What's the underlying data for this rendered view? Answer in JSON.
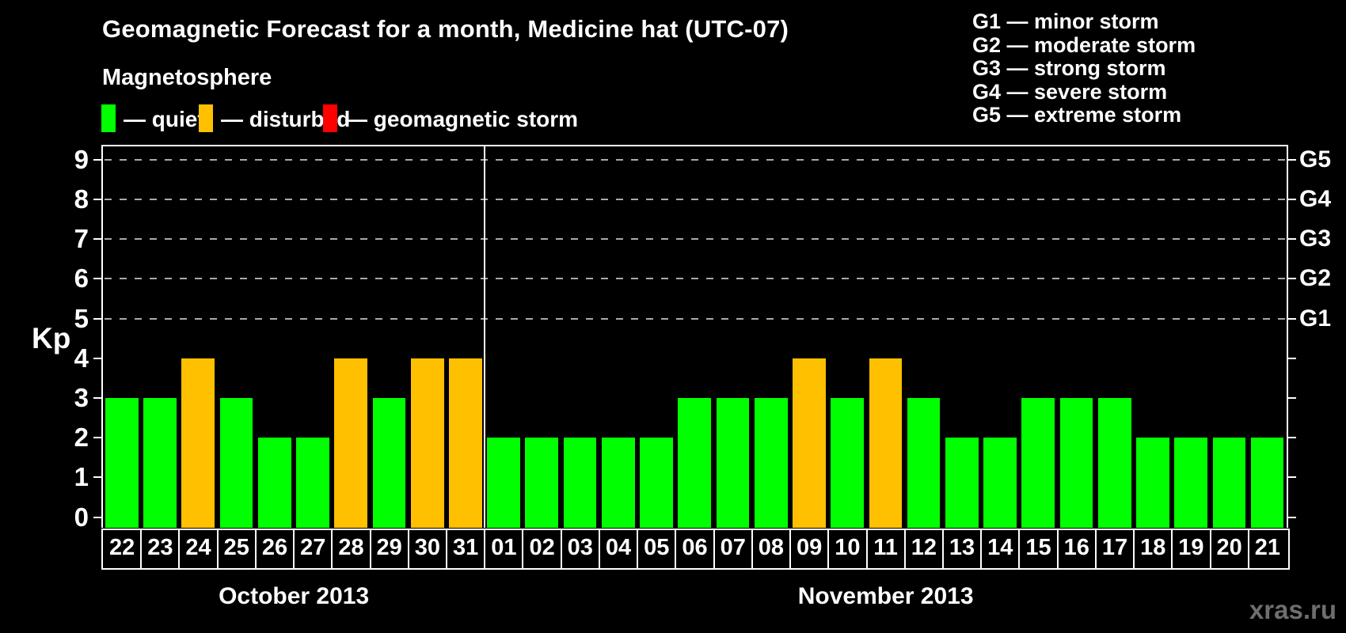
{
  "header": {
    "title": "Geomagnetic Forecast for a month, Medicine hat (UTC-07)",
    "subtitle": "Magnetosphere"
  },
  "legend": {
    "items": [
      {
        "key": "quiet",
        "label": "— quiet",
        "color": "#00ff00"
      },
      {
        "key": "disturbed",
        "label": "— disturbed",
        "color": "#ffc000"
      },
      {
        "key": "storm",
        "label": "— geomagnetic storm",
        "color": "#ff0000"
      }
    ]
  },
  "g_scale_legend": {
    "items": [
      "G1 — minor storm",
      "G2 — moderate storm",
      "G3 — strong storm",
      "G4 — severe storm",
      "G5 — extreme storm"
    ]
  },
  "watermark": "xras.ru",
  "chart_data": {
    "type": "bar",
    "title": "Geomagnetic Forecast for a month, Medicine hat (UTC-07)",
    "ylabel": "Kp",
    "ylim": [
      0,
      9
    ],
    "yticks": [
      0,
      1,
      2,
      3,
      4,
      5,
      6,
      7,
      8,
      9
    ],
    "gridlines_at_kp": [
      5,
      6,
      7,
      8,
      9
    ],
    "grid": "dashed-horizontal",
    "legend_position": "top",
    "right_axis_labels": [
      {
        "kp": 5,
        "label": "G1"
      },
      {
        "kp": 6,
        "label": "G2"
      },
      {
        "kp": 7,
        "label": "G3"
      },
      {
        "kp": 8,
        "label": "G4"
      },
      {
        "kp": 9,
        "label": "G5"
      }
    ],
    "status_colors": {
      "quiet": "#00ff00",
      "disturbed": "#ffc000",
      "storm": "#ff0000"
    },
    "months": [
      {
        "label": "October 2013",
        "days": [
          {
            "day": "22",
            "kp": 3,
            "status": "quiet"
          },
          {
            "day": "23",
            "kp": 3,
            "status": "quiet"
          },
          {
            "day": "24",
            "kp": 4,
            "status": "disturbed"
          },
          {
            "day": "25",
            "kp": 3,
            "status": "quiet"
          },
          {
            "day": "26",
            "kp": 2,
            "status": "quiet"
          },
          {
            "day": "27",
            "kp": 2,
            "status": "quiet"
          },
          {
            "day": "28",
            "kp": 4,
            "status": "disturbed"
          },
          {
            "day": "29",
            "kp": 3,
            "status": "quiet"
          },
          {
            "day": "30",
            "kp": 4,
            "status": "disturbed"
          },
          {
            "day": "31",
            "kp": 4,
            "status": "disturbed"
          }
        ]
      },
      {
        "label": "November 2013",
        "days": [
          {
            "day": "01",
            "kp": 2,
            "status": "quiet"
          },
          {
            "day": "02",
            "kp": 2,
            "status": "quiet"
          },
          {
            "day": "03",
            "kp": 2,
            "status": "quiet"
          },
          {
            "day": "04",
            "kp": 2,
            "status": "quiet"
          },
          {
            "day": "05",
            "kp": 2,
            "status": "quiet"
          },
          {
            "day": "06",
            "kp": 3,
            "status": "quiet"
          },
          {
            "day": "07",
            "kp": 3,
            "status": "quiet"
          },
          {
            "day": "08",
            "kp": 3,
            "status": "quiet"
          },
          {
            "day": "09",
            "kp": 4,
            "status": "disturbed"
          },
          {
            "day": "10",
            "kp": 3,
            "status": "quiet"
          },
          {
            "day": "11",
            "kp": 4,
            "status": "disturbed"
          },
          {
            "day": "12",
            "kp": 3,
            "status": "quiet"
          },
          {
            "day": "13",
            "kp": 2,
            "status": "quiet"
          },
          {
            "day": "14",
            "kp": 2,
            "status": "quiet"
          },
          {
            "day": "15",
            "kp": 3,
            "status": "quiet"
          },
          {
            "day": "16",
            "kp": 3,
            "status": "quiet"
          },
          {
            "day": "17",
            "kp": 3,
            "status": "quiet"
          },
          {
            "day": "18",
            "kp": 2,
            "status": "quiet"
          },
          {
            "day": "19",
            "kp": 2,
            "status": "quiet"
          },
          {
            "day": "20",
            "kp": 2,
            "status": "quiet"
          },
          {
            "day": "21",
            "kp": 2,
            "status": "quiet"
          }
        ]
      }
    ]
  }
}
